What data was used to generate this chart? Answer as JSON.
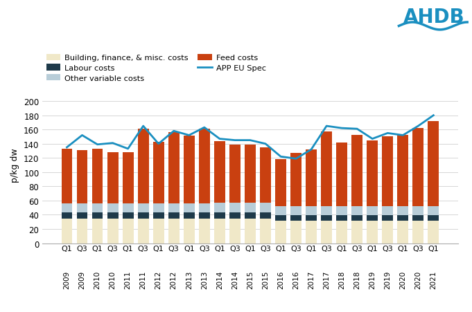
{
  "quarter_labels": [
    "Q1",
    "Q3",
    "Q1",
    "Q3",
    "Q1",
    "Q3",
    "Q1",
    "Q3",
    "Q1",
    "Q3",
    "Q1",
    "Q3",
    "Q1",
    "Q3",
    "Q1",
    "Q3",
    "Q1",
    "Q3",
    "Q1",
    "Q3",
    "Q1",
    "Q3",
    "Q1",
    "Q3",
    "Q1"
  ],
  "year_labels": [
    "2009",
    "2009",
    "2010",
    "2010",
    "2011",
    "2011",
    "2012",
    "2012",
    "2013",
    "2013",
    "2014",
    "2014",
    "2015",
    "2015",
    "2016",
    "2016",
    "2017",
    "2017",
    "2018",
    "2018",
    "2019",
    "2019",
    "2020",
    "2020",
    "2021"
  ],
  "building_finance": [
    35,
    35,
    35,
    35,
    35,
    35,
    35,
    35,
    35,
    35,
    35,
    35,
    35,
    35,
    32,
    32,
    32,
    32,
    32,
    32,
    32,
    32,
    32,
    32,
    32
  ],
  "labour": [
    8,
    8,
    8,
    8,
    8,
    8,
    8,
    8,
    8,
    8,
    8,
    8,
    8,
    8,
    7,
    7,
    7,
    7,
    7,
    7,
    7,
    7,
    7,
    7,
    7
  ],
  "other_variable": [
    13,
    13,
    13,
    13,
    13,
    13,
    13,
    13,
    13,
    13,
    14,
    14,
    14,
    14,
    13,
    13,
    13,
    13,
    13,
    13,
    13,
    13,
    13,
    13,
    13
  ],
  "feed_costs": [
    77,
    75,
    77,
    72,
    72,
    105,
    87,
    100,
    95,
    105,
    87,
    82,
    82,
    78,
    66,
    75,
    80,
    105,
    90,
    100,
    93,
    98,
    100,
    110,
    120
  ],
  "app_eu_spec": [
    135,
    152,
    139,
    141,
    133,
    165,
    140,
    158,
    152,
    163,
    147,
    145,
    145,
    140,
    122,
    119,
    132,
    165,
    162,
    161,
    147,
    155,
    152,
    165,
    180
  ],
  "color_building": "#f0e8c8",
  "color_labour": "#1e3a4a",
  "color_other": "#b8cdd8",
  "color_feed": "#c94010",
  "color_app": "#1a8fc0",
  "ylabel": "p/kg dw",
  "ylim": [
    0,
    220
  ],
  "yticks": [
    0,
    20,
    40,
    60,
    80,
    100,
    120,
    140,
    160,
    180,
    200
  ],
  "legend_items": [
    {
      "label": "Building, finance, & misc. costs",
      "type": "patch",
      "color": "#f0e8c8"
    },
    {
      "label": "Labour costs",
      "type": "patch",
      "color": "#1e3a4a"
    },
    {
      "label": "Other variable costs",
      "type": "patch",
      "color": "#b8cdd8"
    },
    {
      "label": "Feed costs",
      "type": "patch",
      "color": "#c94010"
    },
    {
      "label": "APP EU Spec",
      "type": "line",
      "color": "#1a8fc0"
    }
  ]
}
